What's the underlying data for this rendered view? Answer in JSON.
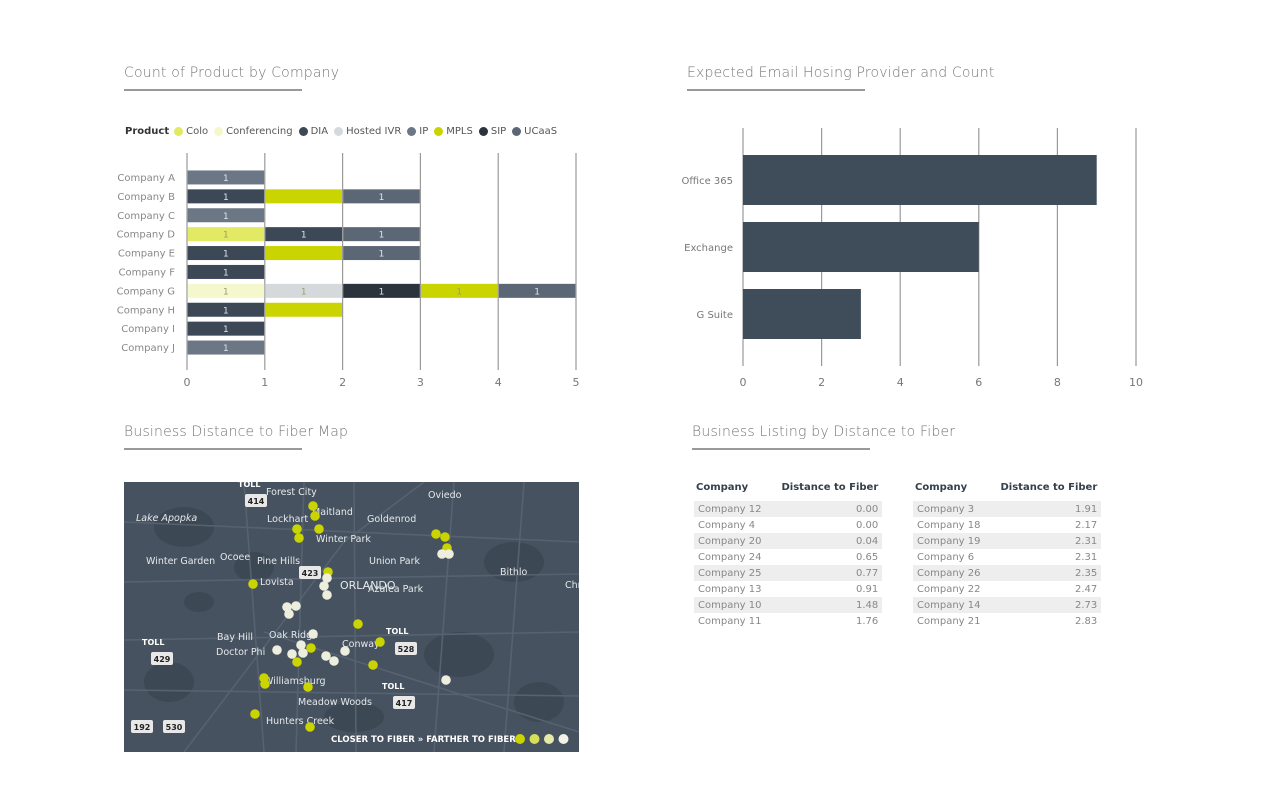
{
  "titles": {
    "product_chart": "Count of Product by Company",
    "email_chart": "Expected Email Hosing Provider and Count",
    "map": "Business Distance to Fiber Map",
    "listing": "Business Listing by Distance to Fiber"
  },
  "colors": {
    "Colo": "#e2ea63",
    "Conferencing": "#f5f7cd",
    "DIA": "#3c4856",
    "Hosted IVR": "#d6d9dc",
    "IP": "#6c7785",
    "MPLS": "#c9d400",
    "SIP": "#2b333d",
    "UCaaS": "#5c6775",
    "email_bar": "#3f4c5a",
    "map_bg": "#46525f",
    "map_near": "#c9d400",
    "map_far": "#eeeede"
  },
  "chart_data": [
    {
      "type": "bar",
      "orientation": "horizontal",
      "stacked": true,
      "title": "Count of Product by Company",
      "legend_title": "Product",
      "legend_position": "top-left",
      "categories": [
        "Company A",
        "Company B",
        "Company C",
        "Company D",
        "Company E",
        "Company F",
        "Company G",
        "Company H",
        "Company I",
        "Company J"
      ],
      "series": [
        {
          "name": "Colo",
          "values": [
            0,
            0,
            0,
            1,
            0,
            0,
            0,
            0,
            0,
            0
          ]
        },
        {
          "name": "Conferencing",
          "values": [
            0,
            0,
            0,
            0,
            0,
            0,
            1,
            0,
            0,
            0
          ]
        },
        {
          "name": "DIA",
          "values": [
            0,
            1,
            0,
            1,
            1,
            1,
            0,
            1,
            1,
            0
          ]
        },
        {
          "name": "Hosted IVR",
          "values": [
            0,
            0,
            0,
            0,
            0,
            0,
            1,
            0,
            0,
            0
          ]
        },
        {
          "name": "IP",
          "values": [
            1,
            0,
            1,
            0,
            0,
            0,
            0,
            0,
            0,
            1
          ]
        },
        {
          "name": "MPLS",
          "values": [
            0,
            1,
            0,
            0,
            1,
            0,
            1,
            1,
            0,
            0
          ]
        },
        {
          "name": "SIP",
          "values": [
            0,
            0,
            0,
            0,
            0,
            0,
            1,
            0,
            0,
            0
          ]
        },
        {
          "name": "UCaaS",
          "values": [
            0,
            1,
            0,
            1,
            1,
            0,
            1,
            0,
            0,
            0
          ]
        }
      ],
      "segments": [
        [
          "IP"
        ],
        [
          "DIA",
          "MPLS",
          "UCaaS"
        ],
        [
          "IP"
        ],
        [
          "Colo",
          "DIA",
          "UCaaS"
        ],
        [
          "DIA",
          "MPLS",
          "UCaaS"
        ],
        [
          "DIA"
        ],
        [
          "Conferencing",
          "Hosted IVR",
          "SIP",
          "MPLS",
          "UCaaS"
        ],
        [
          "DIA",
          "MPLS"
        ],
        [
          "DIA"
        ],
        [
          "IP"
        ]
      ],
      "segment_labels": [
        [
          "1"
        ],
        [
          "1",
          "",
          "1"
        ],
        [
          "1"
        ],
        [
          "1",
          "1",
          "1"
        ],
        [
          "1",
          "",
          "1"
        ],
        [
          "1"
        ],
        [
          "1",
          "1",
          "1",
          "1",
          "1"
        ],
        [
          "1",
          ""
        ],
        [
          "1"
        ],
        [
          "1"
        ]
      ],
      "xlim": [
        0,
        5
      ],
      "xticks": [
        "0",
        "1",
        "2",
        "3",
        "4",
        "5"
      ],
      "grid": "vertical"
    },
    {
      "type": "bar",
      "orientation": "horizontal",
      "title": "Expected Email Hosing Provider and Count",
      "categories": [
        "Office 365",
        "Exchange",
        "G Suite"
      ],
      "values": [
        9,
        6,
        3
      ],
      "xlim": [
        0,
        10
      ],
      "xticks": [
        "0",
        "2",
        "4",
        "6",
        "8",
        "10"
      ],
      "grid": "vertical"
    },
    {
      "type": "table",
      "title": "Business Listing by Distance to Fiber",
      "columns": [
        "Company",
        "Distance to Fiber"
      ],
      "rows_left": [
        [
          "Company 12",
          "0.00"
        ],
        [
          "Company 4",
          "0.00"
        ],
        [
          "Company 20",
          "0.04"
        ],
        [
          "Company 24",
          "0.65"
        ],
        [
          "Company 25",
          "0.77"
        ],
        [
          "Company 13",
          "0.91"
        ],
        [
          "Company 10",
          "1.48"
        ],
        [
          "Company 11",
          "1.76"
        ]
      ],
      "rows_right": [
        [
          "Company 3",
          "1.91"
        ],
        [
          "Company 18",
          "2.17"
        ],
        [
          "Company 19",
          "2.31"
        ],
        [
          "Company 6",
          "2.31"
        ],
        [
          "Company 26",
          "2.35"
        ],
        [
          "Company 22",
          "2.47"
        ],
        [
          "Company 14",
          "2.73"
        ],
        [
          "Company 21",
          "2.83"
        ]
      ]
    }
  ],
  "map": {
    "place_labels": [
      "Forest City",
      "Maitland",
      "Oviedo",
      "Lockhart",
      "Goldenrod",
      "Lake Apopka",
      "Winter Park",
      "Winter Garden",
      "Ocoee",
      "Pine Hills",
      "Union Park",
      "Bithlo",
      "Chr",
      "Lovista",
      "ORLANDO",
      "Azalea Park",
      "Conway",
      "Bay Hill",
      "Oak Ridge",
      "Doctor Phi",
      "Williamsburg",
      "Meadow Woods",
      "Hunters Creek"
    ],
    "shields": [
      "414",
      "423",
      "429",
      "528",
      "417",
      "530",
      "192"
    ],
    "toll_labels": [
      "TOLL",
      "TOLL",
      "TOLL",
      "TOLL"
    ],
    "legend_text": "CLOSER TO FIBER » FARTHER TO FIBER",
    "legend_dot_colors": [
      "#c9d400",
      "#d6df57",
      "#e6eaa8",
      "#f2f2e6"
    ]
  }
}
